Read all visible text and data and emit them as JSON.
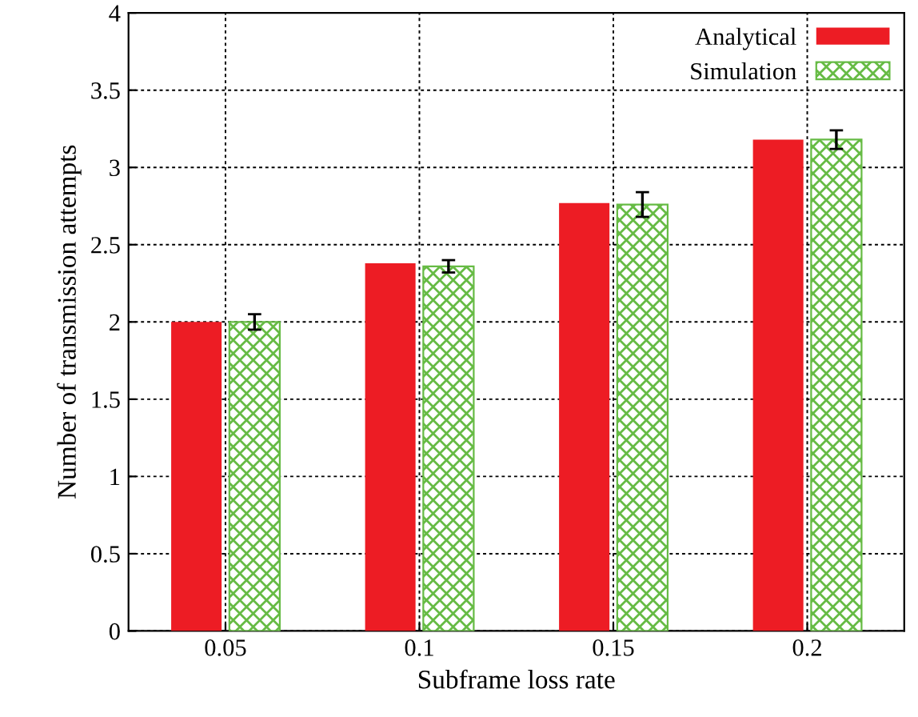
{
  "chart_data": {
    "type": "bar",
    "xlabel": "Subframe loss rate",
    "ylabel": "Number of transmission attempts",
    "categories": [
      "0.05",
      "0.1",
      "0.15",
      "0.2"
    ],
    "series": [
      {
        "name": "Analytical",
        "color": "#ed1c24",
        "values": [
          2.0,
          2.38,
          2.77,
          3.18
        ]
      },
      {
        "name": "Simulation",
        "color": "#66bb44",
        "values": [
          2.0,
          2.36,
          2.76,
          3.18
        ],
        "errors": [
          0.05,
          0.04,
          0.08,
          0.06
        ]
      }
    ],
    "ylim": [
      0,
      4
    ],
    "yticks": [
      0,
      0.5,
      1,
      1.5,
      2,
      2.5,
      3,
      3.5,
      4
    ],
    "grid": true,
    "legend": "top right"
  }
}
